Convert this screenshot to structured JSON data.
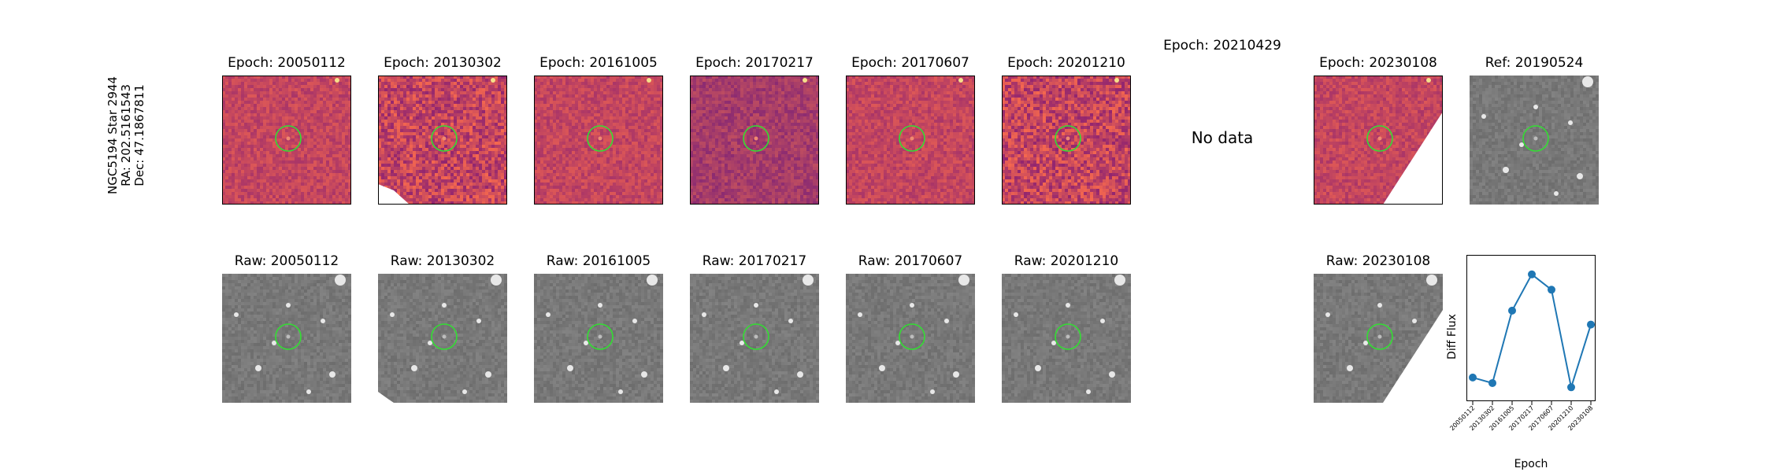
{
  "target": {
    "line1": "NGC5194 Star 2944",
    "line2": "RA: 202.5161543",
    "line3": "Dec: 47.1867811"
  },
  "diff_row": [
    {
      "title": "Epoch: 20050112",
      "style": "diff",
      "seed": 11,
      "mask": "none"
    },
    {
      "title": "Epoch: 20130302",
      "style": "diff-noisy",
      "seed": 23,
      "mask": "bottom-left"
    },
    {
      "title": "Epoch: 20161005",
      "style": "diff",
      "seed": 37,
      "mask": "none"
    },
    {
      "title": "Epoch: 20170217",
      "style": "diff-dark",
      "seed": 41,
      "mask": "none"
    },
    {
      "title": "Epoch: 20170607",
      "style": "diff",
      "seed": 53,
      "mask": "none"
    },
    {
      "title": "Epoch: 20201210",
      "style": "diff-noisy",
      "seed": 67,
      "mask": "none"
    },
    {
      "title": "Epoch: 20210429",
      "style": "nodata",
      "nodata_text": "No data"
    },
    {
      "title": "Epoch: 20230108",
      "style": "diff",
      "seed": 79,
      "mask": "bottom-right"
    },
    {
      "title": "Ref: 20190524",
      "style": "raw",
      "seed": 83,
      "mask": "none"
    }
  ],
  "raw_row": [
    {
      "title": "Raw: 20050112",
      "seed": 91,
      "mask": "none"
    },
    {
      "title": "Raw: 20130302",
      "seed": 97,
      "mask": "bottom-left-small"
    },
    {
      "title": "Raw: 20161005",
      "seed": 101,
      "mask": "none"
    },
    {
      "title": "Raw: 20170217",
      "seed": 103,
      "mask": "none"
    },
    {
      "title": "Raw: 20170607",
      "seed": 107,
      "mask": "none"
    },
    {
      "title": "Raw: 20201210",
      "seed": 109,
      "mask": "none"
    },
    null,
    {
      "title": "Raw: 20230108",
      "seed": 113,
      "mask": "bottom-right"
    }
  ],
  "colors": {
    "circle": "#33dd33",
    "series": "#1f77b4",
    "diff_base": "#b0457a",
    "raw_base": "#8a8a8a"
  },
  "chart_data": {
    "type": "line",
    "title": "",
    "xlabel": "Epoch",
    "ylabel": "Diff Flux",
    "categories": [
      "20050112",
      "20130302",
      "20161005",
      "20170217",
      "20170607",
      "20201210",
      "20230108"
    ],
    "series": [
      {
        "values": [
          0.12,
          0.08,
          0.6,
          0.86,
          0.75,
          0.05,
          0.5
        ]
      }
    ],
    "ylim": [
      -0.05,
      1.0
    ],
    "grid": false,
    "legend": "none"
  }
}
